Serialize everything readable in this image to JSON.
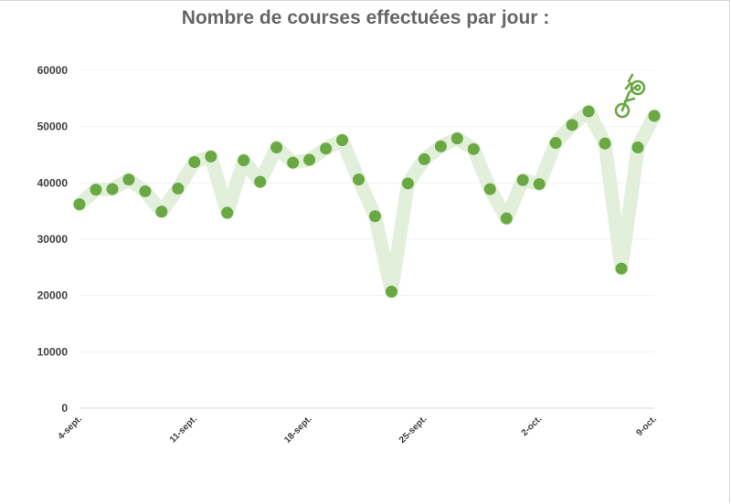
{
  "colors": {
    "line": "#e2efda",
    "point": "#6aa843",
    "text": "#404040",
    "title": "#666666",
    "grid": "#f2f2f2"
  },
  "icon": "bicycle-icon",
  "chart_data": {
    "type": "line",
    "title": "Nombre de courses effectuées par jour :",
    "xlabel": "",
    "ylabel": "",
    "ylim": [
      0,
      60000
    ],
    "yticks": [
      "0",
      "10000",
      "20000",
      "30000",
      "40000",
      "50000",
      "60000"
    ],
    "xtick_labels": [
      {
        "index": 0,
        "label": "4-sept."
      },
      {
        "index": 7,
        "label": "11-sept."
      },
      {
        "index": 14,
        "label": "18-sept."
      },
      {
        "index": 21,
        "label": "25-sept."
      },
      {
        "index": 28,
        "label": "2-oct."
      },
      {
        "index": 35,
        "label": "9-oct."
      }
    ],
    "grid": true,
    "legend": "none",
    "series": [
      {
        "values": [
          36200,
          38800,
          38900,
          40600,
          38500,
          34900,
          39000,
          43700,
          44700,
          34700,
          44000,
          40200,
          46300,
          43600,
          44100,
          46100,
          47600,
          40600,
          34100,
          20700,
          39900,
          44200,
          46500,
          47900,
          46000,
          38900,
          33700,
          40500,
          39800,
          47100,
          50300,
          52700,
          47000,
          24800,
          46300,
          51900
        ]
      }
    ]
  }
}
